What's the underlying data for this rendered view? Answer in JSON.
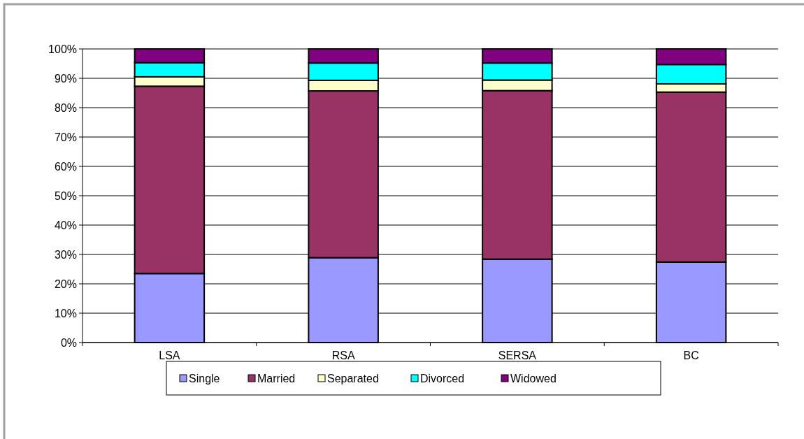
{
  "chart_data": {
    "type": "bar",
    "stacked": true,
    "categories": [
      "LSA",
      "RSA",
      "SERSA",
      "BC"
    ],
    "series": [
      {
        "name": "Single",
        "color": "#9999ff",
        "values": [
          23.5,
          28.9,
          28.4,
          27.4
        ]
      },
      {
        "name": "Married",
        "color": "#993366",
        "values": [
          63.8,
          56.8,
          57.4,
          57.9
        ]
      },
      {
        "name": "Separated",
        "color": "#ffffcc",
        "values": [
          3.2,
          3.6,
          3.6,
          2.8
        ]
      },
      {
        "name": "Divorced",
        "color": "#00ffff",
        "values": [
          4.8,
          5.9,
          5.8,
          6.6
        ]
      },
      {
        "name": "Widowed",
        "color": "#800080",
        "values": [
          4.7,
          4.8,
          4.8,
          5.3
        ]
      }
    ],
    "ylim": [
      0,
      100
    ],
    "yticks": [
      {
        "value": 0,
        "label": "0%"
      },
      {
        "value": 10,
        "label": "10%"
      },
      {
        "value": 20,
        "label": "20%"
      },
      {
        "value": 30,
        "label": "30%"
      },
      {
        "value": 40,
        "label": "40%"
      },
      {
        "value": 50,
        "label": "50%"
      },
      {
        "value": 60,
        "label": "60%"
      },
      {
        "value": 70,
        "label": "70%"
      },
      {
        "value": 80,
        "label": "80%"
      },
      {
        "value": 90,
        "label": "90%"
      },
      {
        "value": 100,
        "label": "100%"
      }
    ],
    "grid": "y",
    "legend": "bottom"
  }
}
